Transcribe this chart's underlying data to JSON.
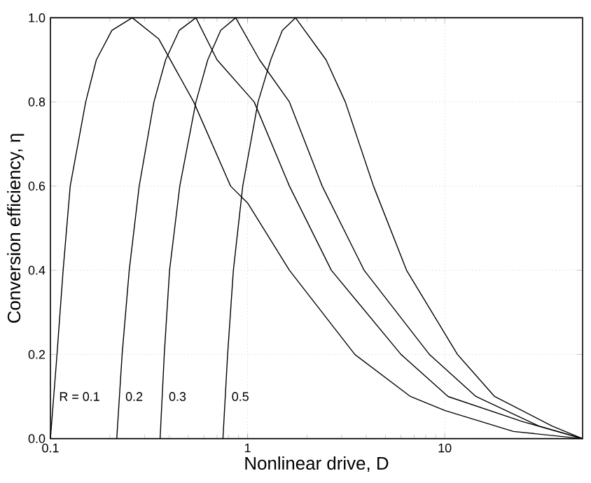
{
  "chart_data": {
    "type": "line",
    "xlabel": "Nonlinear drive, D",
    "ylabel": "Conversion efficiency, η",
    "log": "x",
    "grid": true,
    "line_style": "solid",
    "xlim": [
      0.1,
      50
    ],
    "xticks": [
      0.1,
      1,
      10
    ],
    "ylim": [
      0,
      1
    ],
    "yticks": [
      {
        "value": 0,
        "label": "0.0"
      },
      0.2,
      0.4,
      0.6,
      0.8,
      {
        "value": 1,
        "label": "1.0"
      }
    ],
    "series": [
      {
        "color": "#000000",
        "x": [
          0.1,
          0.108,
          0.116,
          0.126,
          0.151,
          0.171,
          0.205,
          0.26,
          0.354,
          0.533,
          0.82,
          1,
          1.63,
          3.5,
          6.7,
          10,
          22.3,
          50
        ],
        "values": [
          0,
          0.2,
          0.4,
          0.6,
          0.8,
          0.9,
          0.97,
          1,
          0.95,
          0.8,
          0.6,
          0.56,
          0.4,
          0.2,
          0.1,
          0.067,
          0.017,
          0
        ]
      },
      {
        "color": "#000000",
        "x": [
          0.217,
          0.231,
          0.251,
          0.282,
          0.335,
          0.384,
          0.45,
          0.547,
          0.7,
          1.08,
          1.63,
          2.66,
          6,
          10.4,
          25,
          50
        ],
        "values": [
          0,
          0.2,
          0.4,
          0.6,
          0.8,
          0.9,
          0.97,
          1,
          0.9,
          0.8,
          0.6,
          0.4,
          0.2,
          0.1,
          0.04,
          0
        ]
      },
      {
        "color": "#000000",
        "x": [
          0.36,
          0.378,
          0.402,
          0.453,
          0.547,
          0.628,
          0.73,
          0.87,
          1.15,
          1.63,
          2.39,
          3.9,
          8.36,
          14.4,
          30,
          50
        ],
        "values": [
          0,
          0.2,
          0.4,
          0.6,
          0.8,
          0.9,
          0.97,
          1,
          0.9,
          0.8,
          0.6,
          0.4,
          0.2,
          0.1,
          0.03,
          0
        ]
      },
      {
        "color": "#000000",
        "x": [
          0.75,
          0.792,
          0.847,
          0.945,
          1.13,
          1.31,
          1.5,
          1.75,
          2.5,
          3.13,
          4.35,
          6.4,
          11.6,
          17.9,
          35,
          50
        ],
        "values": [
          0,
          0.2,
          0.4,
          0.6,
          0.8,
          0.9,
          0.97,
          1,
          0.9,
          0.8,
          0.6,
          0.4,
          0.2,
          0.1,
          0.03,
          0
        ]
      }
    ],
    "annotations": [
      "R = 0.1",
      "0.2",
      "0.3",
      "0.5"
    ]
  }
}
